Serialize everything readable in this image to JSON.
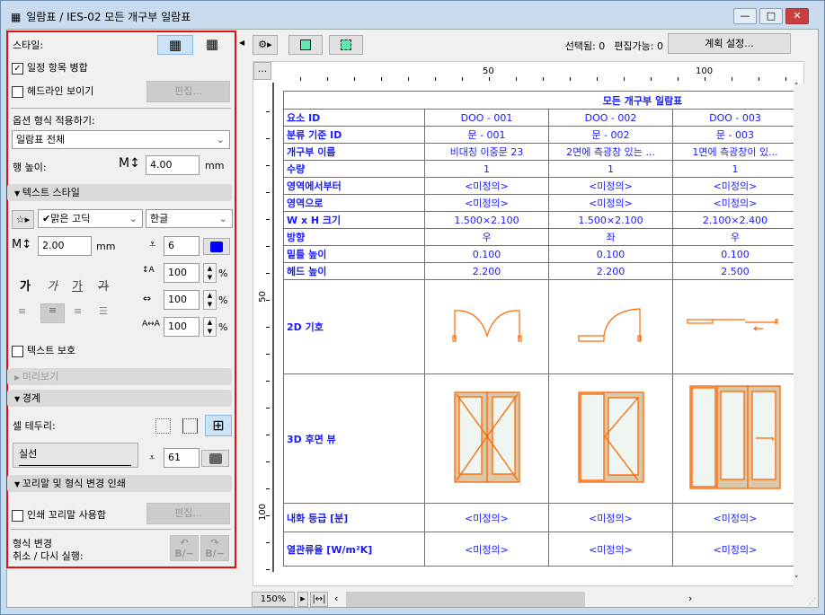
{
  "window": {
    "title": "일람표 / IES-02 모든 개구부 일람표",
    "controls": {
      "minimize": "—",
      "maximize": "□",
      "close": "✕"
    }
  },
  "panel": {
    "style_label": "스타일:",
    "merge_label": "일정 항목 병합",
    "merge_checked": true,
    "headline_label": "헤드라인 보이기",
    "headline_checked": false,
    "edit_label": "편집...",
    "apply_format_label": "옵션 형식 적용하기:",
    "apply_format_value": "일람표 전체",
    "row_height_label": "행 높이:",
    "row_height_value": "4.00",
    "row_height_unit": "mm",
    "text_style_section": "텍스트 스타일",
    "font_value": "✔맑은 고딕",
    "script_value": "한글",
    "text_size_value": "2.00",
    "text_size_unit": "mm",
    "pen_value": "6",
    "style_glyph": "가",
    "line_spacing_value": "100",
    "width_value": "100",
    "spacing_value": "100",
    "percent": "%",
    "protect_text_label": "텍스트 보호",
    "protect_checked": false,
    "preview_section": "미리보기",
    "border_section": "경계",
    "cell_border_label": "셀 테두리:",
    "line_type_value": "실선",
    "border_pen_value": "61",
    "footer_section": "꼬리말 및 형식 변경 인쇄",
    "print_footer_label": "인쇄 꼬리말 사용함",
    "print_footer_checked": false,
    "undo_label_1": "형식 변경",
    "undo_label_2": "취소 / 다시 실행:",
    "undo_glyph": "B/−"
  },
  "toolbar": {
    "selected_label": "선택됨: 0",
    "editable_label": "편집가능: 0",
    "plan_settings_label": "계획 설정...",
    "ruler_button": "..."
  },
  "ruler": {
    "top_labels": [
      "50",
      "100"
    ],
    "left_labels": [
      "50",
      "100"
    ]
  },
  "schedule": {
    "title": "모든 개구부 일람표",
    "rows": [
      {
        "label": "요소 ID",
        "values": [
          "DOO - 001",
          "DOO - 002",
          "DOO - 003"
        ]
      },
      {
        "label": "분류 기준 ID",
        "values": [
          "문 - 001",
          "문 - 002",
          "문 - 003"
        ]
      },
      {
        "label": "개구부 이름",
        "values": [
          "비대칭 이중문 23",
          "2면에 측광창 있는 ...",
          "1면에 측광창이 있..."
        ]
      },
      {
        "label": "수량",
        "values": [
          "1",
          "1",
          "1"
        ]
      },
      {
        "label": "영역에서부터",
        "values": [
          "<미정의>",
          "<미정의>",
          "<미정의>"
        ]
      },
      {
        "label": "영역으로",
        "values": [
          "<미정의>",
          "<미정의>",
          "<미정의>"
        ]
      },
      {
        "label": "W x H 크기",
        "values": [
          "1.500×2.100",
          "1.500×2.100",
          "2.100×2.400"
        ]
      },
      {
        "label": "방향",
        "values": [
          "우",
          "좌",
          "우"
        ]
      },
      {
        "label": "밑틀 높이",
        "values": [
          "0.100",
          "0.100",
          "0.100"
        ]
      },
      {
        "label": "헤드 높이",
        "values": [
          "2.200",
          "2.200",
          "2.500"
        ]
      }
    ],
    "symbol_2d_label": "2D 기호",
    "view_3d_label": "3D 후면 뷰",
    "rows_bottom": [
      {
        "label": "내화 등급 [분]",
        "values": [
          "<미정의>",
          "<미정의>",
          "<미정의>"
        ]
      },
      {
        "label": "열관류율 [W/m²K]",
        "values": [
          "<미정의>",
          "<미정의>",
          "<미정의>"
        ]
      }
    ]
  },
  "statusbar": {
    "zoom": "150%"
  },
  "colors": {
    "highlight_border": "#e01010",
    "text_blue": "#1a1aff",
    "door_line": "#ff6600",
    "door_fill": "#dac9a9"
  }
}
